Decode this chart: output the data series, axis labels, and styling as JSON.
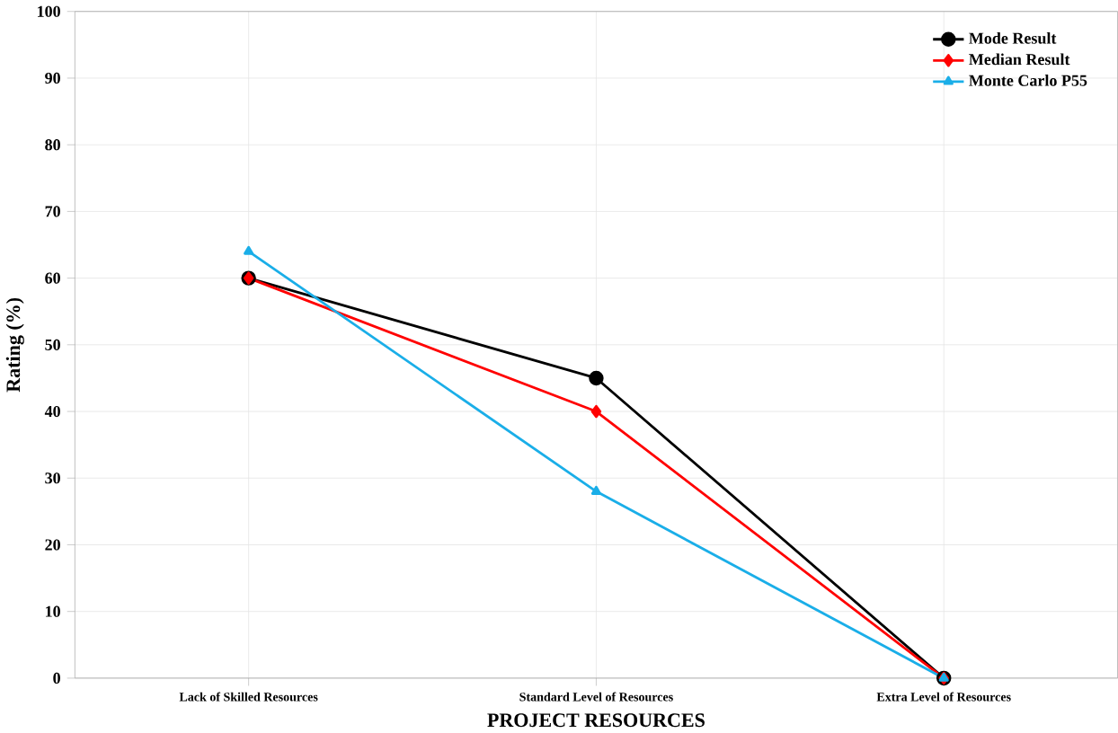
{
  "chart_data": {
    "type": "line",
    "xlabel": "PROJECT RESOURCES",
    "ylabel": "Rating (%)",
    "categories": [
      "Lack of Skilled Resources",
      "Standard Level of Resources",
      "Extra Level of Resources"
    ],
    "series": [
      {
        "name": "Mode Result",
        "color": "#000000",
        "marker": "circle",
        "values": [
          60,
          45,
          0
        ]
      },
      {
        "name": "Median Result",
        "color": "#ff0000",
        "marker": "diamond",
        "values": [
          60,
          40,
          0
        ]
      },
      {
        "name": "Monte Carlo P55",
        "color": "#1aaee8",
        "marker": "triangle",
        "values": [
          64,
          28,
          0
        ]
      }
    ],
    "ylim": [
      0,
      100
    ],
    "yticks": [
      0,
      10,
      20,
      30,
      40,
      50,
      60,
      70,
      80,
      90,
      100
    ],
    "grid": true,
    "legend": "top right",
    "line_style": "solid"
  }
}
